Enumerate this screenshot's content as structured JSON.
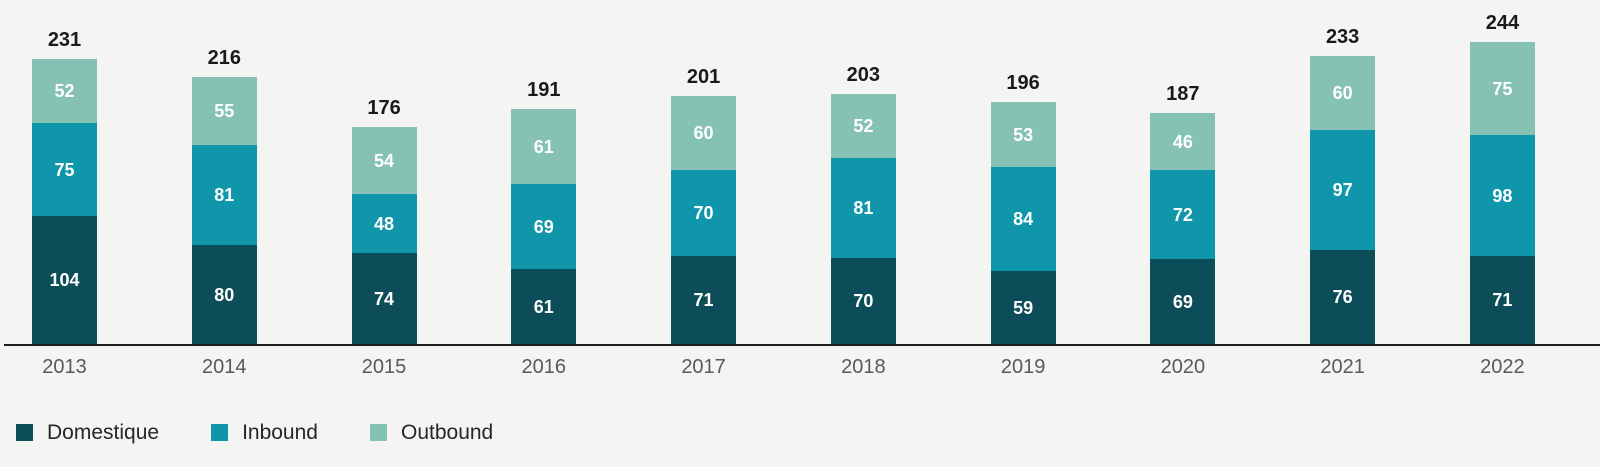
{
  "chart_data": {
    "type": "bar",
    "stacked": true,
    "title": "",
    "xlabel": "",
    "ylabel": "",
    "grid": false,
    "legend_position": "bottom",
    "value_labels": "inside-segments",
    "total_labels": "above-bars",
    "categories": [
      "2013",
      "2014",
      "2015",
      "2016",
      "2017",
      "2018",
      "2019",
      "2020",
      "2021",
      "2022"
    ],
    "series": [
      {
        "name": "Domestique",
        "color": "#0d4c59",
        "values": [
          104,
          80,
          74,
          61,
          71,
          70,
          59,
          69,
          76,
          71
        ]
      },
      {
        "name": "Inbound",
        "color": "#0f96aa",
        "values": [
          75,
          81,
          48,
          69,
          70,
          81,
          84,
          72,
          97,
          98
        ]
      },
      {
        "name": "Outbound",
        "color": "#85c2b4",
        "values": [
          52,
          55,
          54,
          61,
          60,
          52,
          53,
          46,
          60,
          75
        ]
      }
    ],
    "totals": [
      231,
      216,
      176,
      191,
      201,
      203,
      196,
      187,
      233,
      244
    ]
  },
  "legend": {
    "items": [
      {
        "label": "Domestique",
        "color": "#0d4c59"
      },
      {
        "label": "Inbound",
        "color": "#0f96aa"
      },
      {
        "label": "Outbound",
        "color": "#85c2b4"
      }
    ]
  },
  "colors": {
    "background": "#f4f4f2",
    "axis": "#1c1c1c",
    "tick_label": "#595959",
    "total_label": "#1a1a1a",
    "segment_label": "#ffffff"
  }
}
